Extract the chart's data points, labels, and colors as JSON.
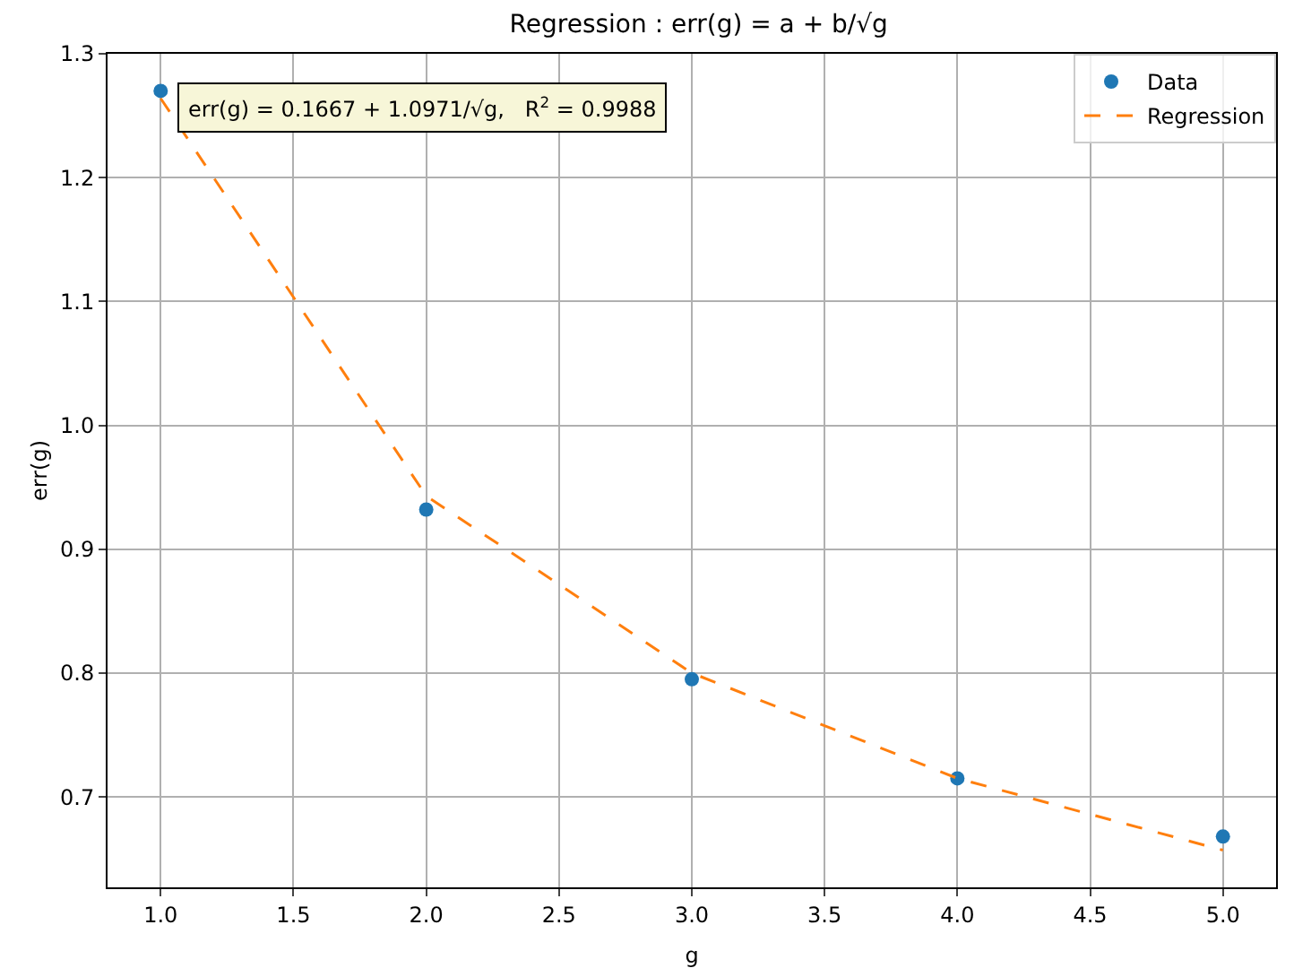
{
  "chart_data": {
    "type": "scatter",
    "title": "Regression : err(g) = a + b/√g",
    "xlabel": "g",
    "ylabel": "err(g)",
    "x": [
      1,
      2,
      3,
      4,
      5
    ],
    "series": [
      {
        "name": "Data",
        "color": "#1f77b4",
        "marker": "circle",
        "values": [
          1.27,
          0.932,
          0.795,
          0.715,
          0.668
        ]
      },
      {
        "name": "Regression",
        "type": "line",
        "color": "#ff7f0e",
        "marker": "none",
        "line_style": "dashed",
        "values": [
          1.264,
          0.943,
          0.8,
          0.715,
          0.657
        ]
      }
    ],
    "annotations": [
      "err(g) = 0.1667 + 1.0971/√g,   R$^{2}$ = 0.9988"
    ],
    "xlim": [
      0.8,
      5.2
    ],
    "xticks": [
      {
        "value": 1,
        "label": "1.0"
      },
      {
        "value": 1.5,
        "label": "1.5"
      },
      {
        "value": 2,
        "label": "2.0"
      },
      {
        "value": 2.5,
        "label": "2.5"
      },
      {
        "value": 3,
        "label": "3.0"
      },
      {
        "value": 3.5,
        "label": "3.5"
      },
      {
        "value": 4,
        "label": "4.0"
      },
      {
        "value": 4.5,
        "label": "4.5"
      },
      {
        "value": 5,
        "label": "5.0"
      }
    ],
    "ylim": [
      0.627,
      1.3
    ],
    "yticks": [
      {
        "value": 0.7,
        "label": "0.7"
      },
      {
        "value": 0.8,
        "label": "0.8"
      },
      {
        "value": 0.9,
        "label": "0.9"
      },
      {
        "value": 1,
        "label": "1.0"
      },
      {
        "value": 1.1,
        "label": "1.1"
      },
      {
        "value": 1.2,
        "label": "1.2"
      },
      {
        "value": 1.3,
        "label": "1.3"
      }
    ],
    "grid": true,
    "legend": "top right"
  }
}
